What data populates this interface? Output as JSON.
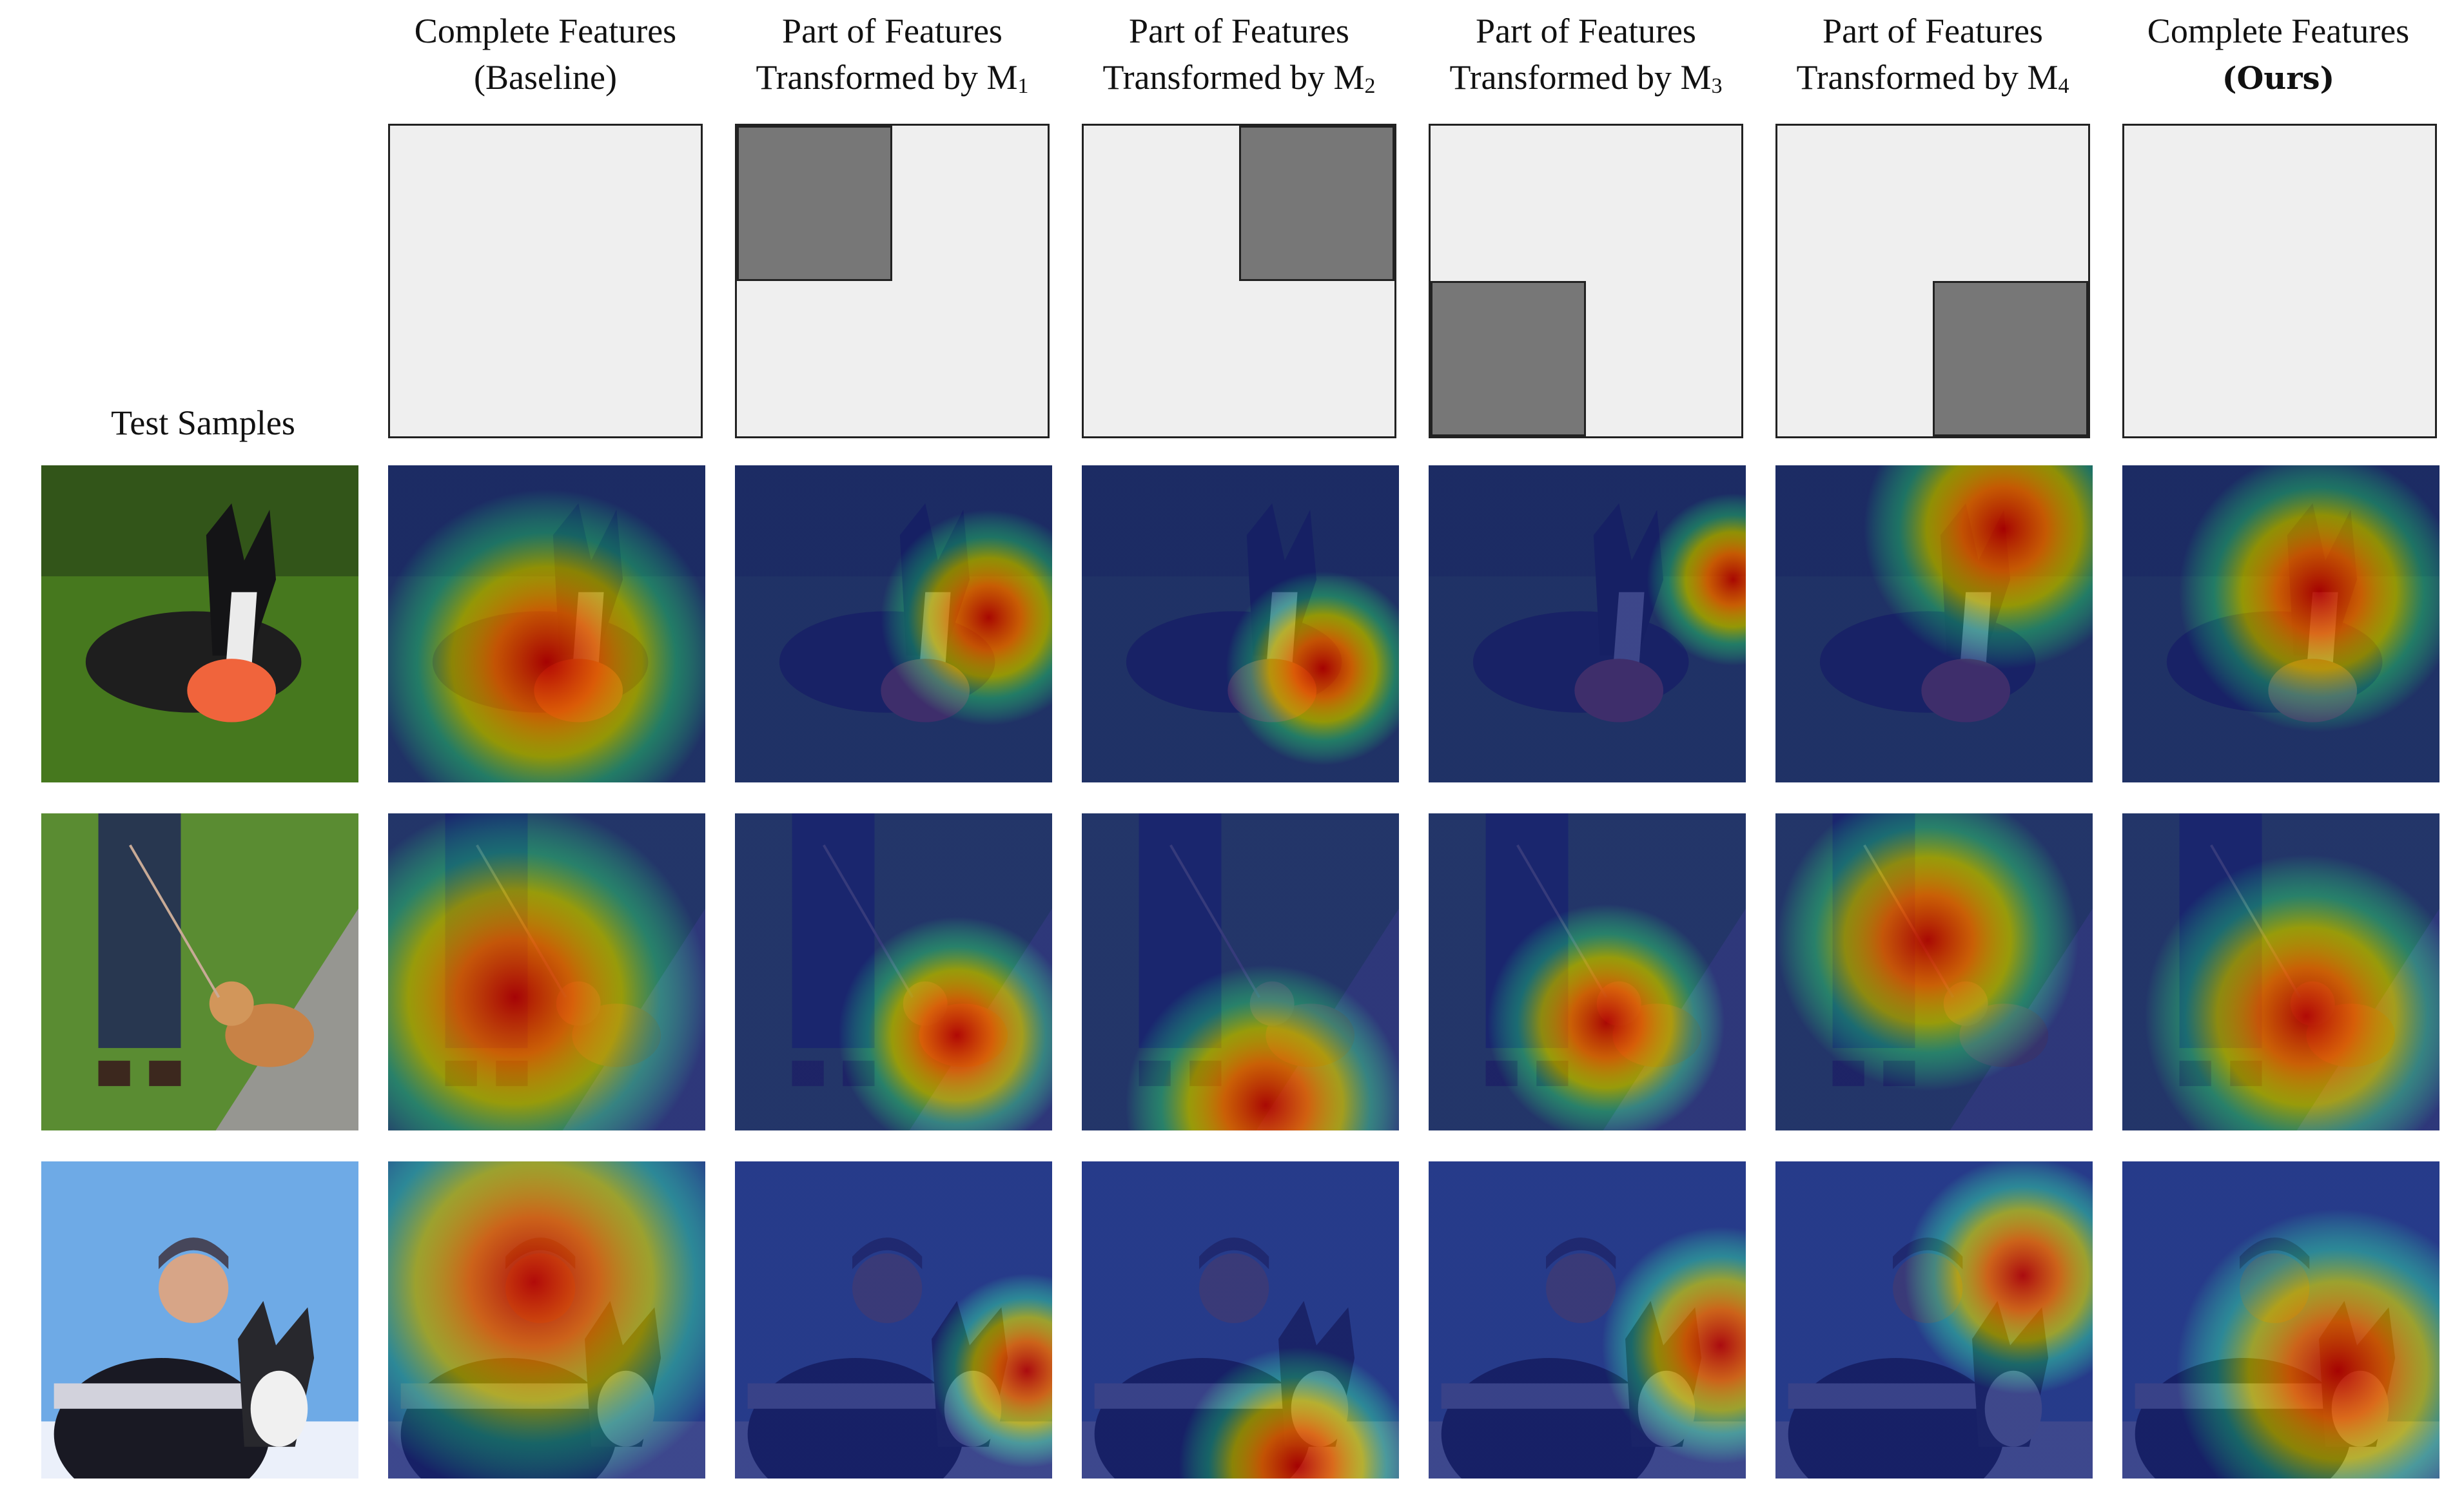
{
  "figure": {
    "row_label": "Test Samples",
    "columns": [
      {
        "line1": "Complete Features",
        "line2": "(Baseline)",
        "mask": "none"
      },
      {
        "line1": "Part of Features",
        "line2_text": "Transformed by M",
        "line2_sub": "1",
        "mask": "top-left"
      },
      {
        "line1": "Part of Features",
        "line2_text": "Transformed by M",
        "line2_sub": "2",
        "mask": "top-right"
      },
      {
        "line1": "Part of Features",
        "line2_text": "Transformed by M",
        "line2_sub": "3",
        "mask": "bottom-left"
      },
      {
        "line1": "Part of Features",
        "line2_text": "Transformed by M",
        "line2_sub": "4",
        "mask": "bottom-right"
      },
      {
        "line1": "Complete Features",
        "line2": "(Ours)",
        "line2_bold": true,
        "mask": "none"
      }
    ],
    "rows": [
      {
        "subject": "dog-with-frisbee-photo"
      },
      {
        "subject": "person-walking-corgi-photo"
      },
      {
        "subject": "woman-with-husky-photo"
      }
    ],
    "colors": {
      "mask_fill": "#efefef",
      "mask_block": "#777777",
      "heat_hot": "#cc0000",
      "heat_cold": "#1f2fa0"
    }
  }
}
